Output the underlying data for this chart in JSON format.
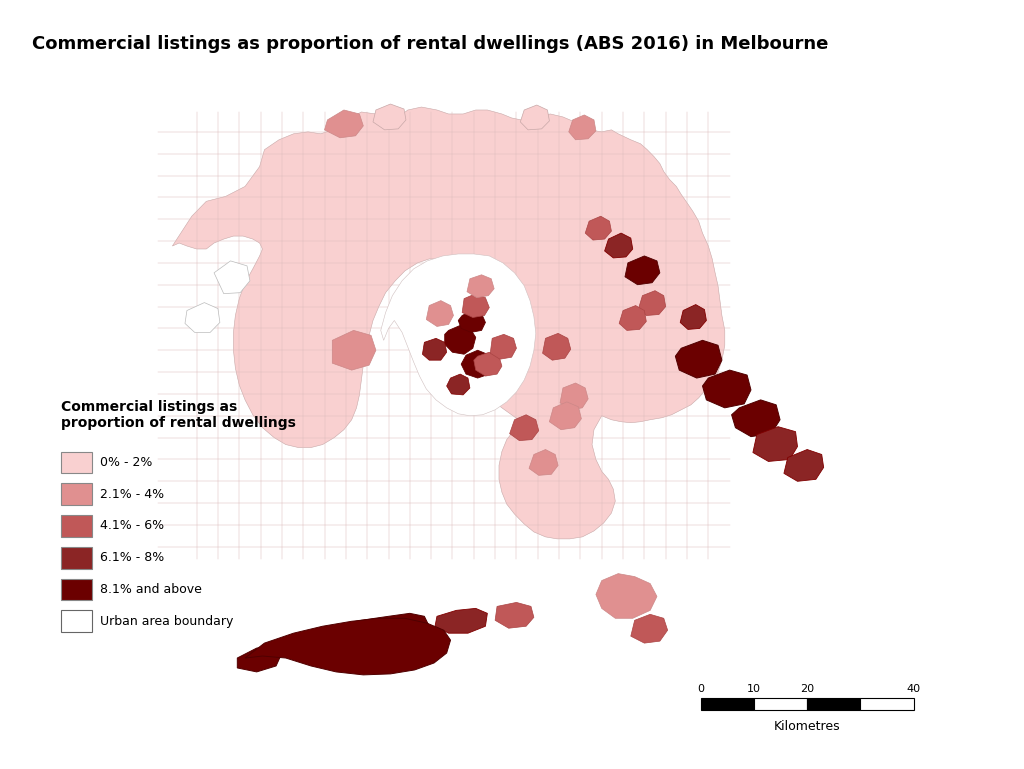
{
  "title": "Commercial listings as proportion of rental dwellings (ABS 2016) in Melbourne",
  "legend_title": "Commercial listings as\nproportion of rental dwellings",
  "legend_items": [
    {
      "label": "0% - 2%",
      "color": "#f9d0d0"
    },
    {
      "label": "2.1% - 4%",
      "color": "#e09090"
    },
    {
      "label": "4.1% - 6%",
      "color": "#c05858"
    },
    {
      "label": "6.1% - 8%",
      "color": "#8b2525"
    },
    {
      "label": "8.1% and above",
      "color": "#6b0000"
    },
    {
      "label": "Urban area boundary",
      "color": "#ffffff"
    }
  ],
  "scalebar_ticks": [
    "0",
    "10",
    "20",
    "40"
  ],
  "scalebar_label": "Kilometres",
  "background_color": "#ffffff",
  "title_fontsize": 13,
  "legend_title_fontsize": 10,
  "legend_fontsize": 9
}
